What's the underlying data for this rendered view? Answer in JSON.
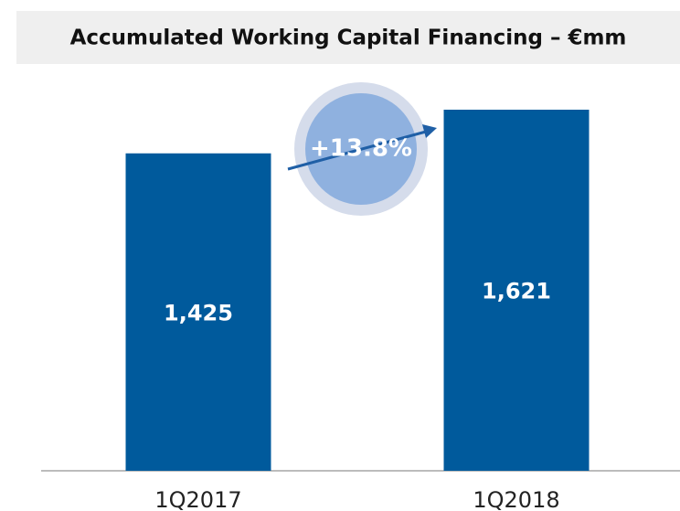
{
  "chart_data": {
    "type": "bar",
    "title": "Accumulated Working Capital Financing – €mm",
    "categories": [
      "1Q2017",
      "1Q2018"
    ],
    "values": [
      1425,
      1621
    ],
    "value_labels": [
      "1,425",
      "1,621"
    ],
    "color": "#005a9c",
    "annotation": "+13.8%"
  }
}
